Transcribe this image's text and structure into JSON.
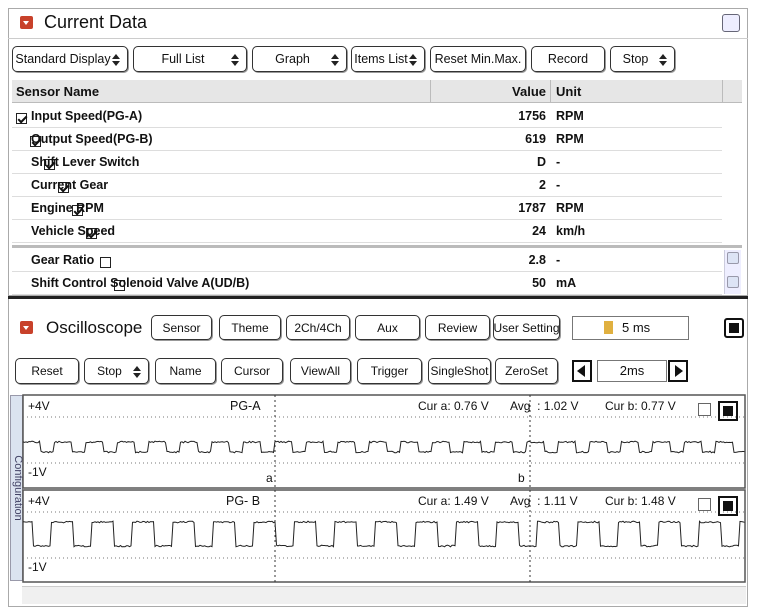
{
  "current_data": {
    "title": "Current Data",
    "toolbar": [
      {
        "label": "Standard Display",
        "dropdown": true
      },
      {
        "label": "Full List",
        "dropdown": true
      },
      {
        "label": "Graph",
        "dropdown": true
      },
      {
        "label": "Items List",
        "dropdown": true
      },
      {
        "label": "Reset Min.Max.",
        "dropdown": false
      },
      {
        "label": "Record",
        "dropdown": false
      },
      {
        "label": "Stop",
        "dropdown": true
      }
    ],
    "columns": [
      "Sensor Name",
      "Value",
      "Unit"
    ],
    "rows": [
      {
        "name": "Input Speed(PG-A)",
        "value": 1756,
        "unit": "RPM",
        "checked": true
      },
      {
        "name": "Output Speed(PG-B)",
        "value": 619,
        "unit": "RPM",
        "checked": true
      },
      {
        "name": "Shift Lever Switch",
        "value": "D",
        "unit": "-",
        "checked": true
      },
      {
        "name": "Current Gear",
        "value": 2,
        "unit": "-",
        "checked": true
      },
      {
        "name": "Engine RPM",
        "value": 1787,
        "unit": "RPM",
        "checked": true
      },
      {
        "name": "Vehicle Speed",
        "value": 24,
        "unit": "km/h",
        "checked": true
      },
      {
        "name": "Gear Ratio",
        "value": 2.8,
        "unit": "-",
        "checked": false
      },
      {
        "name": "Shift Control Solenoid Valve A(UD/B)",
        "value": 50,
        "unit": "mA",
        "checked": false
      }
    ]
  },
  "oscilloscope": {
    "title": "Oscilloscope",
    "tabs": [
      "Sensor",
      "Theme",
      "2Ch/4Ch",
      "Aux",
      "Review",
      "User Setting"
    ],
    "timebase": "5 ms",
    "toolbar": [
      {
        "label": "Reset",
        "dropdown": false
      },
      {
        "label": "Stop",
        "dropdown": true
      },
      {
        "label": "Name",
        "dropdown": false
      },
      {
        "label": "Cursor",
        "dropdown": false
      },
      {
        "label": "ViewAll",
        "dropdown": false
      },
      {
        "label": "Trigger",
        "dropdown": false
      },
      {
        "label": "SingleShot",
        "dropdown": false
      },
      {
        "label": "ZeroSet",
        "dropdown": false
      }
    ],
    "step": "2ms",
    "side_label": "Configuration",
    "channels": [
      {
        "name": "PG-A",
        "max": "+4V",
        "min": "-1V",
        "cur_a": "Cur a: 0.76 V",
        "avg": "Avg  : 1.02 V",
        "cur_b": "Cur b: 0.77 V",
        "cursor_a": "a",
        "cursor_b": "b"
      },
      {
        "name": "PG- B",
        "max": "+4V",
        "min": "-1V",
        "cur_a": "Cur a: 1.49 V",
        "avg": "Avg  : 1.11 V",
        "cur_b": "Cur b: 1.48 V"
      }
    ]
  }
}
